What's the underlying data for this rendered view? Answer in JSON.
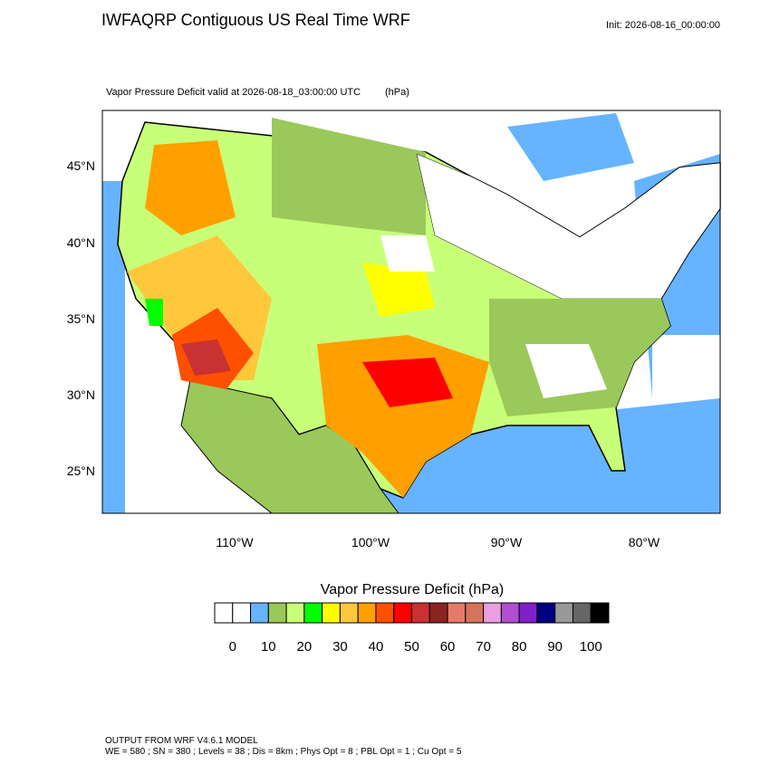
{
  "header": {
    "title": "IWFAQRP Contiguous US Real Time WRF",
    "init": "Init: 2026-08-16_00:00:00"
  },
  "map": {
    "subtitle": "Vapor Pressure Deficit valid at 2026-08-18_03:00:00 UTC",
    "units": "(hPa)",
    "lat_labels": [
      "45°N",
      "40°N",
      "35°N",
      "30°N",
      "25°N"
    ],
    "lon_labels": [
      "110°W",
      "100°W",
      "90°W",
      "80°W"
    ]
  },
  "colorbar": {
    "title": "Vapor Pressure Deficit  (hPa)",
    "colors": [
      "#ffffff",
      "#ffffff",
      "#66b3ff",
      "#9bc85a",
      "#c8ff78",
      "#00ff00",
      "#ffff00",
      "#ffc83c",
      "#ffa000",
      "#ff5000",
      "#ff0000",
      "#c83232",
      "#8b2323",
      "#e67a6a",
      "#d4745a",
      "#e8a0e0",
      "#b050d0",
      "#8020c8",
      "#000080",
      "#999999",
      "#666666",
      "#000000"
    ],
    "labels": [
      0,
      10,
      20,
      30,
      40,
      50,
      60,
      70,
      80,
      90,
      100
    ]
  },
  "footer": {
    "line1": "OUTPUT FROM WRF V4.6.1 MODEL",
    "line2": "WE = 580 ; SN = 380 ; Levels = 38 ; Dis = 8km ; Phys Opt = 8 ; PBL Opt = 1 ; Cu Opt = 5"
  }
}
